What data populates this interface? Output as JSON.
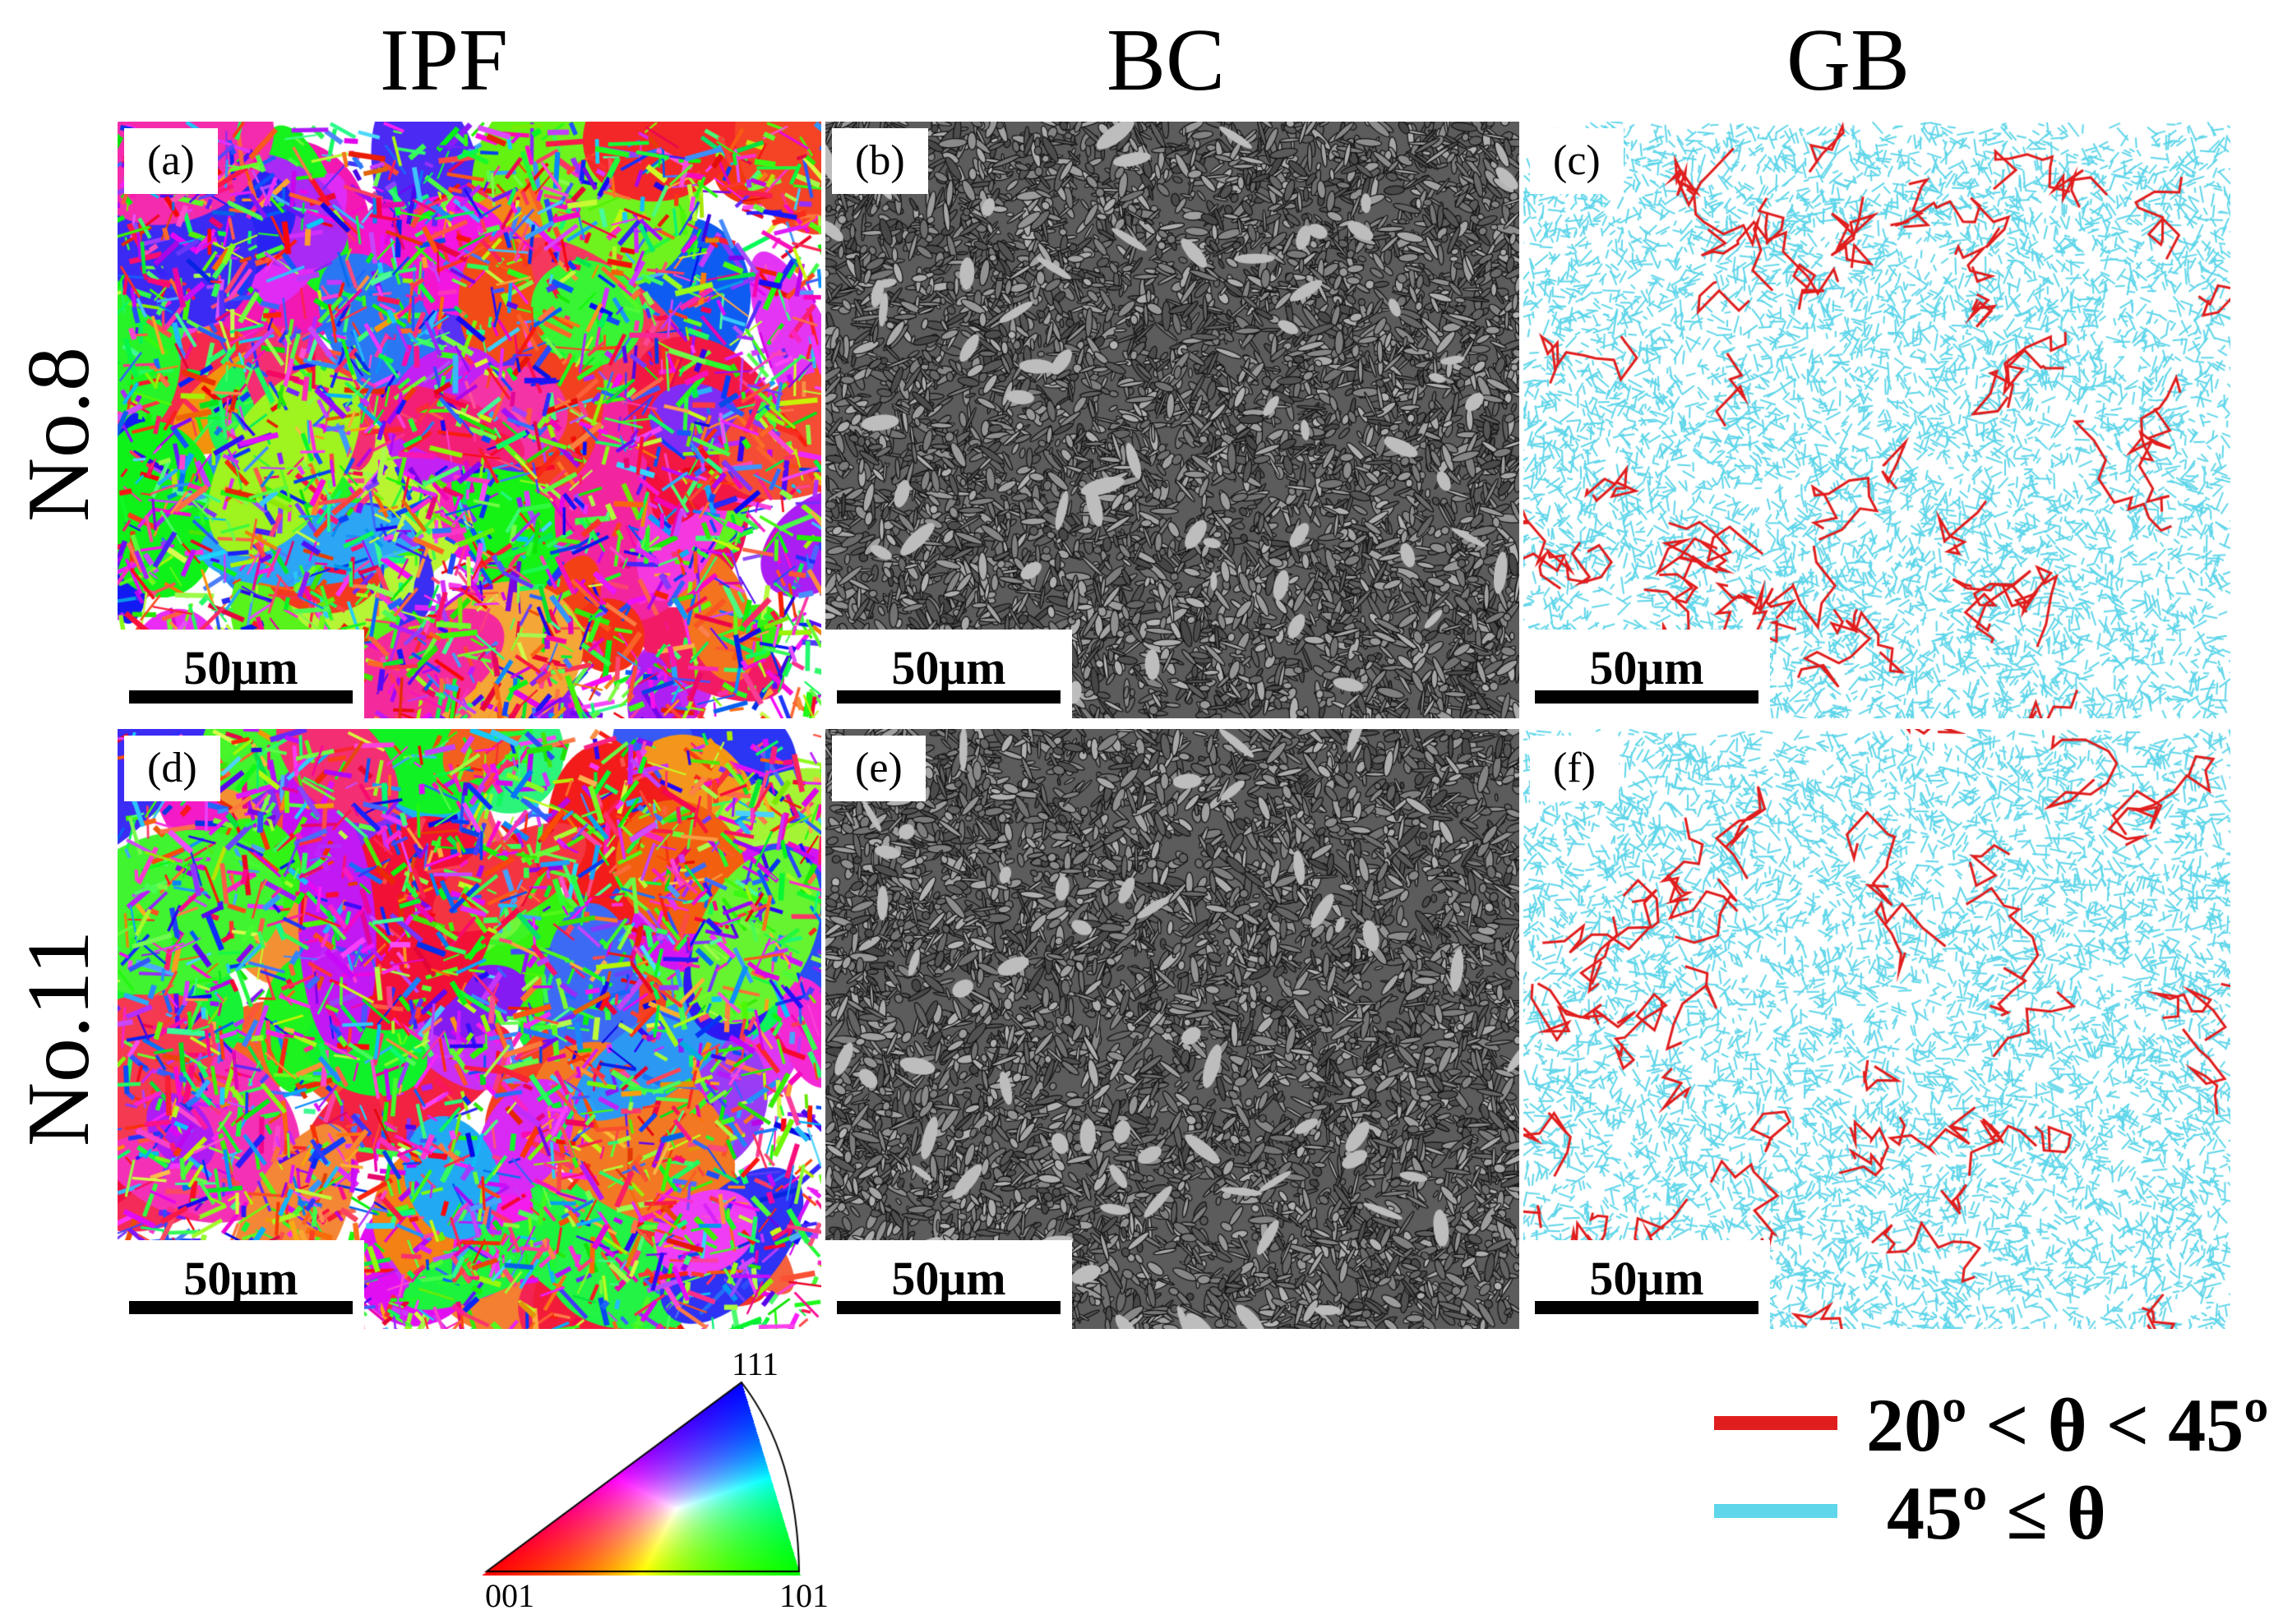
{
  "columns": [
    {
      "title": "IPF",
      "type": "ipf"
    },
    {
      "title": "BC",
      "type": "bc"
    },
    {
      "title": "GB",
      "type": "gb"
    }
  ],
  "rows": [
    {
      "title": "No.8",
      "panels": [
        "(a)",
        "(b)",
        "(c)"
      ]
    },
    {
      "title": "No.11",
      "panels": [
        "(d)",
        "(e)",
        "(f)"
      ]
    }
  ],
  "scale_bar": "50μm",
  "ipf_key": {
    "corner_top": "111",
    "corner_left": "001",
    "corner_right": "101",
    "colors": {
      "001": "#ff0000",
      "101": "#00ff00",
      "111": "#0000ff"
    }
  },
  "legend": [
    {
      "label": "20º < θ < 45º",
      "color": "#e01e1e"
    },
    {
      "label": "45º ≤ θ",
      "color": "#5fd6ea"
    }
  ]
}
